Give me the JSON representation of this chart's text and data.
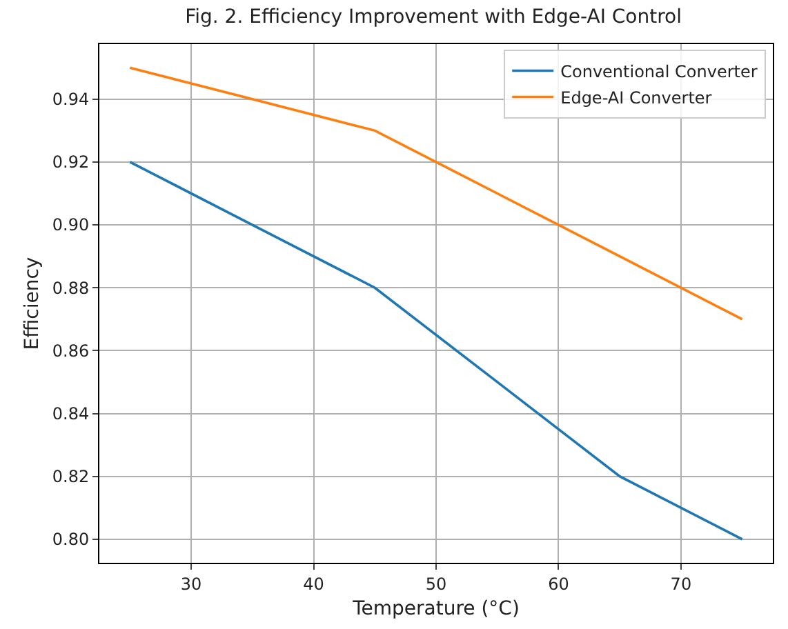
{
  "chart_data": {
    "type": "line",
    "title": "Fig. 2. Efficiency Improvement with Edge-AI Control",
    "xlabel": "Temperature (°C)",
    "ylabel": "Efficiency",
    "x": [
      25,
      35,
      45,
      55,
      65,
      75
    ],
    "series": [
      {
        "name": "Conventional Converter",
        "color": "#1f77b4",
        "values": [
          0.92,
          0.9,
          0.88,
          0.85,
          0.82,
          0.8
        ]
      },
      {
        "name": "Edge-AI Converter",
        "color": "#ff7f0e",
        "values": [
          0.95,
          0.94,
          0.93,
          0.91,
          0.89,
          0.87
        ]
      }
    ],
    "xlim": [
      22.5,
      77.5
    ],
    "xticks": [
      30,
      40,
      50,
      60,
      70
    ],
    "ylim": [
      0.7925,
      0.9575
    ],
    "yticks": [
      {
        "value": 0.8,
        "label": "0.80"
      },
      {
        "value": 0.82,
        "label": "0.82"
      },
      {
        "value": 0.84,
        "label": "0.84"
      },
      {
        "value": 0.86,
        "label": "0.86"
      },
      {
        "value": 0.88,
        "label": "0.88"
      },
      {
        "value": 0.9,
        "label": "0.90"
      },
      {
        "value": 0.92,
        "label": "0.92"
      },
      {
        "value": 0.94,
        "label": "0.94"
      }
    ],
    "grid": true,
    "legend": "top right",
    "marker": "none",
    "line_style": "solid"
  }
}
